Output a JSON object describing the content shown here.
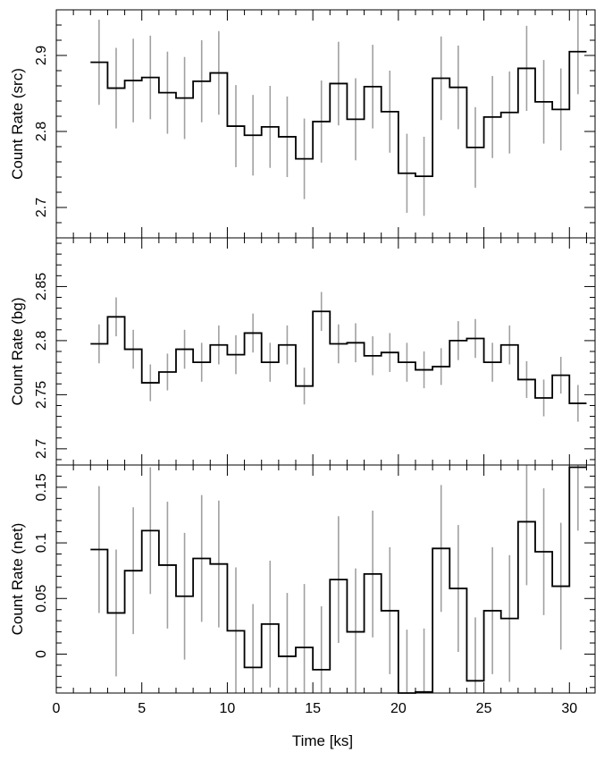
{
  "chart_data": {
    "type": "line",
    "shared_x": {
      "label": "Time [ks]",
      "range": [
        0,
        31.5
      ],
      "ticks": [
        0,
        5,
        10,
        15,
        20,
        25,
        30
      ],
      "bin_edges": [
        2,
        3,
        4,
        5,
        6,
        7,
        8,
        9,
        10,
        11,
        12,
        13,
        14,
        15,
        16,
        17,
        18,
        19,
        20,
        21,
        22,
        23,
        24,
        25,
        26,
        27,
        28,
        29,
        30,
        31
      ]
    },
    "panels": [
      {
        "ylabel": "Count Rate (src)",
        "ylim": [
          2.66,
          2.96
        ],
        "yticks": [
          "2.7",
          "2.8",
          "2.9"
        ],
        "values": [
          2.891,
          2.857,
          2.867,
          2.871,
          2.851,
          2.844,
          2.866,
          2.877,
          2.807,
          2.795,
          2.806,
          2.793,
          2.764,
          2.813,
          2.863,
          2.816,
          2.859,
          2.826,
          2.745,
          2.741,
          2.87,
          2.858,
          2.779,
          2.819,
          2.825,
          2.883,
          2.839,
          2.829,
          2.905
        ],
        "errors": [
          0.056,
          0.053,
          0.055,
          0.055,
          0.054,
          0.054,
          0.054,
          0.055,
          0.054,
          0.053,
          0.054,
          0.053,
          0.053,
          0.054,
          0.055,
          0.054,
          0.055,
          0.054,
          0.052,
          0.052,
          0.055,
          0.055,
          0.053,
          0.054,
          0.054,
          0.056,
          0.055,
          0.054,
          0.056
        ]
      },
      {
        "ylabel": "Count Rate (bg)",
        "ylim": [
          2.685,
          2.895
        ],
        "yticks": [
          "2.7",
          "2.75",
          "2.8",
          "2.85"
        ],
        "values": [
          2.797,
          2.822,
          2.792,
          2.761,
          2.771,
          2.792,
          2.78,
          2.796,
          2.787,
          2.807,
          2.78,
          2.796,
          2.758,
          2.827,
          2.797,
          2.798,
          2.786,
          2.789,
          2.78,
          2.773,
          2.776,
          2.8,
          2.802,
          2.78,
          2.796,
          2.764,
          2.747,
          2.768,
          2.742
        ],
        "errors": [
          0.018,
          0.018,
          0.018,
          0.017,
          0.017,
          0.018,
          0.018,
          0.018,
          0.018,
          0.018,
          0.018,
          0.018,
          0.017,
          0.018,
          0.018,
          0.018,
          0.018,
          0.018,
          0.018,
          0.017,
          0.017,
          0.018,
          0.018,
          0.018,
          0.018,
          0.017,
          0.017,
          0.017,
          0.017
        ]
      },
      {
        "ylabel": "Count Rate (net)",
        "ylim": [
          -0.035,
          0.17
        ],
        "yticks": [
          "0",
          "0.05",
          "0.1",
          "0.15"
        ],
        "values": [
          0.094,
          0.037,
          0.075,
          0.111,
          0.08,
          0.052,
          0.086,
          0.081,
          0.021,
          -0.012,
          0.027,
          -0.002,
          0.006,
          -0.014,
          0.067,
          0.02,
          0.072,
          0.039,
          -0.035,
          -0.034,
          0.095,
          0.059,
          -0.024,
          0.039,
          0.032,
          0.119,
          0.092,
          0.061,
          0.168
        ]
      }
    ]
  }
}
